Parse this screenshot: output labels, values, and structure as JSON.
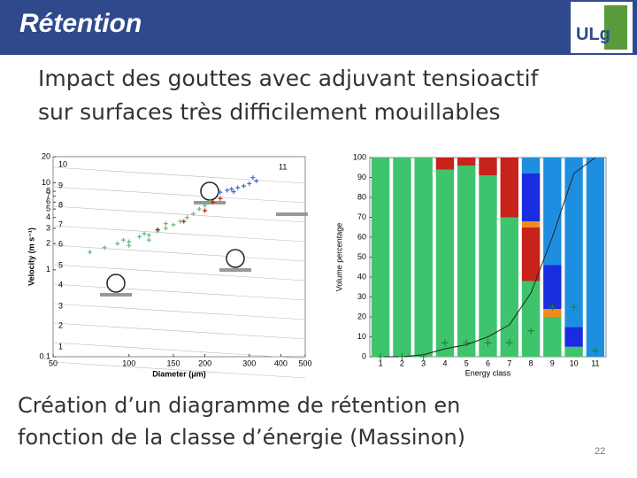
{
  "header": {
    "title": "Rétention",
    "logo": "ULg"
  },
  "slide": {
    "heading": [
      "Impact des gouttes avec adjuvant tensioactif",
      "sur surfaces très difficilement mouillables"
    ],
    "caption": [
      "Création d’un diagramme de rétention en",
      "fonction de la classe d’énergie (Massinon)"
    ],
    "page_number": "22"
  },
  "chart_data": [
    {
      "type": "scatter",
      "xlabel": "Diameter (μm)",
      "ylabel": "Velocity (m s⁻¹)",
      "xscale": "log",
      "yscale": "log",
      "xlim": [
        50,
        500
      ],
      "ylim": [
        0.1,
        20
      ],
      "xticks": [
        50,
        100,
        150,
        200,
        300,
        400,
        500
      ],
      "yticks": [
        0.1,
        1,
        2,
        3,
        4,
        5,
        6,
        7,
        8,
        10,
        20
      ],
      "annotations": [
        "10",
        "9",
        "8",
        "7",
        "6",
        "5",
        "4",
        "3",
        "2",
        "1",
        "11"
      ],
      "series": [
        {
          "color": "#5cc07a",
          "x": [
            70,
            80,
            90,
            95,
            100,
            110,
            115,
            120,
            130,
            140,
            150,
            160,
            170,
            180,
            190,
            200,
            210,
            120,
            100,
            140
          ],
          "y": [
            1.6,
            1.8,
            2.0,
            2.2,
            2.1,
            2.4,
            2.6,
            2.5,
            2.8,
            3.0,
            3.3,
            3.6,
            4.0,
            4.4,
            5.0,
            5.5,
            6.2,
            2.2,
            1.9,
            3.4
          ]
        },
        {
          "color": "#c0201a",
          "x": [
            130,
            165,
            200,
            215,
            230
          ],
          "y": [
            2.9,
            3.6,
            4.8,
            6.0,
            6.6
          ]
        },
        {
          "color": "#3a6fd8",
          "x": [
            230,
            245,
            255,
            270,
            285,
            300,
            320,
            310,
            260
          ],
          "y": [
            7.8,
            8.2,
            8.5,
            8.8,
            9.2,
            9.8,
            10.5,
            11.5,
            7.9
          ]
        }
      ]
    },
    {
      "type": "stacked-bar",
      "xlabel": "Energy class",
      "ylabel": "Volume percentage",
      "categories": [
        "1",
        "2",
        "3",
        "4",
        "5",
        "6",
        "7",
        "8",
        "9",
        "10",
        "11"
      ],
      "ylim": [
        0,
        100
      ],
      "yticks": [
        0,
        10,
        20,
        30,
        40,
        50,
        60,
        70,
        80,
        90,
        100
      ],
      "series": [
        {
          "color": "#3ec46d",
          "values": [
            100,
            100,
            100,
            94,
            96,
            91,
            70,
            38,
            20,
            5,
            0
          ]
        },
        {
          "color": "#c8231a",
          "values": [
            0,
            0,
            0,
            6,
            4,
            9,
            30,
            27,
            0,
            0,
            0
          ]
        },
        {
          "color": "#f08a1c",
          "values": [
            0,
            0,
            0,
            0,
            0,
            0,
            0,
            3,
            4,
            0,
            0
          ]
        },
        {
          "color": "#1a2ce0",
          "values": [
            0,
            0,
            0,
            0,
            0,
            0,
            0,
            24,
            22,
            10,
            0
          ]
        },
        {
          "color": "#1e8fe0",
          "values": [
            0,
            0,
            0,
            0,
            0,
            0,
            0,
            8,
            54,
            85,
            100
          ]
        }
      ],
      "line": {
        "color": "#222222",
        "values": [
          0,
          0,
          1,
          4,
          6,
          10,
          16,
          32,
          60,
          92,
          100
        ]
      },
      "markers": {
        "color": "#1a7a3a",
        "values": [
          0,
          0,
          0,
          7,
          7,
          7,
          7,
          13,
          25,
          25,
          3
        ]
      }
    }
  ]
}
